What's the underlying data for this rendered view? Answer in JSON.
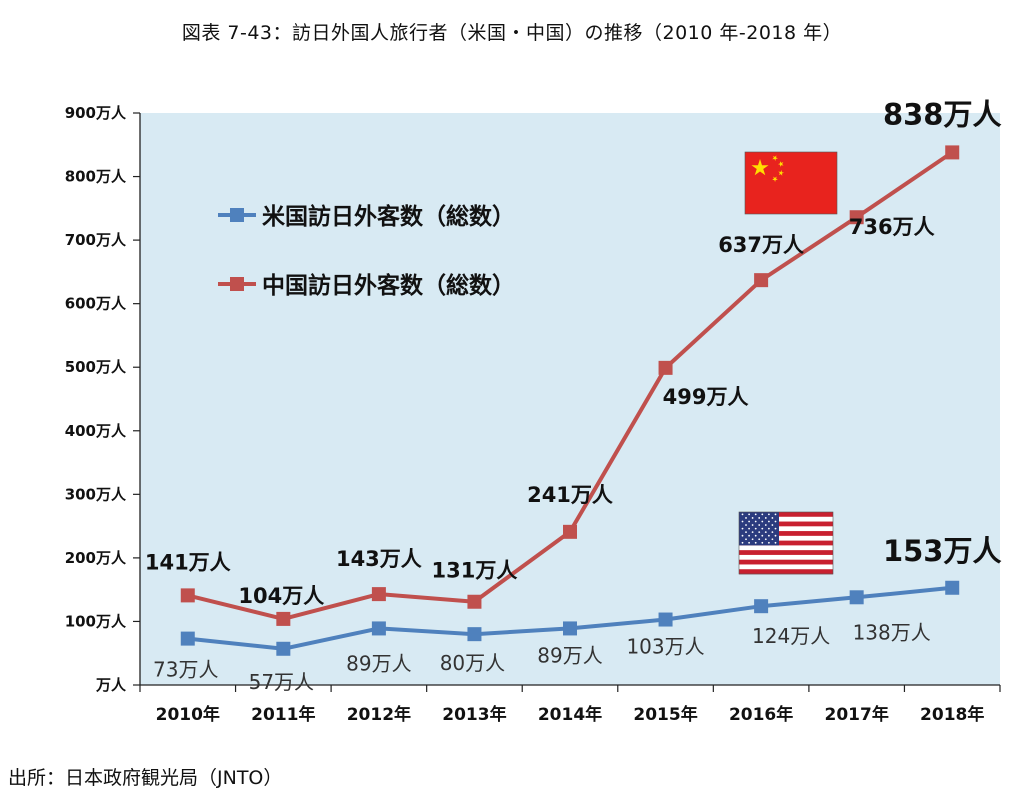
{
  "title": "図表 7-43：訪日外国人旅行者（米国・中国）の推移（2010 年-2018 年）",
  "source": "出所：日本政府観光局（JNTO）",
  "chart_data": {
    "type": "line",
    "categories": [
      "2010年",
      "2011年",
      "2012年",
      "2013年",
      "2014年",
      "2015年",
      "2016年",
      "2017年",
      "2018年"
    ],
    "ylim": [
      0,
      900
    ],
    "yticks": [
      {
        "value": 0,
        "label": "万人"
      },
      {
        "value": 100,
        "label": "100万人"
      },
      {
        "value": 200,
        "label": "200万人"
      },
      {
        "value": 300,
        "label": "300万人"
      },
      {
        "value": 400,
        "label": "400万人"
      },
      {
        "value": 500,
        "label": "500万人"
      },
      {
        "value": 600,
        "label": "600万人"
      },
      {
        "value": 700,
        "label": "700万人"
      },
      {
        "value": 800,
        "label": "800万人"
      },
      {
        "value": 900,
        "label": "900万人"
      }
    ],
    "grid": false,
    "legend_position": "upper-left",
    "background": "#d8eaf3",
    "series": [
      {
        "key": "us",
        "name": "米国訪日外客数（総数）",
        "color": "#4f81bd",
        "flag": "us-flag",
        "values": [
          73,
          57,
          89,
          80,
          89,
          103,
          124,
          138,
          153
        ],
        "labels": [
          "73万人",
          "57万人",
          "89万人",
          "80万人",
          "89万人",
          "103万人",
          "124万人",
          "138万人",
          "153万人"
        ]
      },
      {
        "key": "cn",
        "name": "中国訪日外客数（総数）",
        "color": "#c0504d",
        "flag": "china-flag",
        "values": [
          141,
          104,
          143,
          131,
          241,
          499,
          637,
          736,
          838
        ],
        "labels": [
          "141万人",
          "104万人",
          "143万人",
          "131万人",
          "241万人",
          "499万人",
          "637万人",
          "736万人",
          "838万人"
        ]
      }
    ]
  }
}
